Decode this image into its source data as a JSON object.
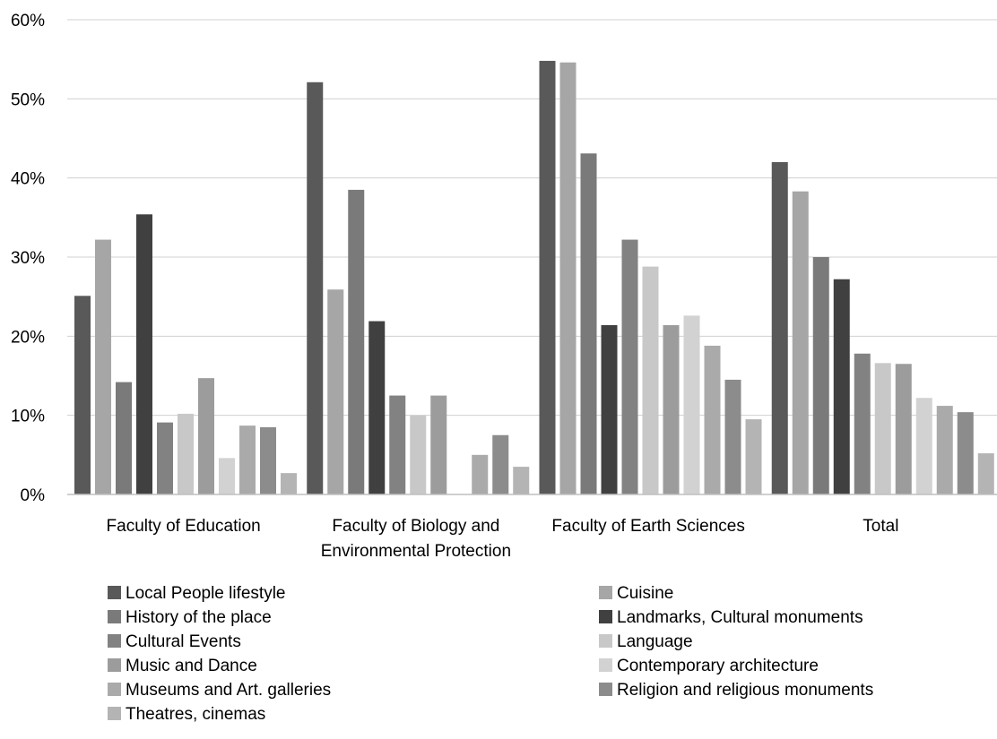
{
  "chart_data": {
    "type": "bar",
    "title": "",
    "xlabel": "",
    "ylabel": "",
    "ylim": [
      0,
      0.6
    ],
    "y_ticks": [
      0,
      0.1,
      0.2,
      0.3,
      0.4,
      0.5,
      0.6
    ],
    "y_tick_labels": [
      "0%",
      "10%",
      "20%",
      "30%",
      "40%",
      "50%",
      "60%"
    ],
    "grid": true,
    "legend_position": "bottom",
    "categories": [
      [
        "Faculty of Education"
      ],
      [
        "Faculty of Biology and",
        "Environmental Protection"
      ],
      [
        "Faculty of Earth Sciences"
      ],
      [
        "Total"
      ]
    ],
    "series": [
      {
        "name": "Local People lifestyle",
        "color": "#595959",
        "values": [
          0.251,
          0.521,
          0.548,
          0.42
        ]
      },
      {
        "name": "Cuisine",
        "color": "#a6a6a6",
        "values": [
          0.322,
          0.259,
          0.546,
          0.383
        ]
      },
      {
        "name": "History of the place",
        "color": "#7a7a7a",
        "values": [
          0.142,
          0.385,
          0.431,
          0.3
        ]
      },
      {
        "name": "Landmarks, Cultural monuments",
        "color": "#404040",
        "values": [
          0.354,
          0.219,
          0.214,
          0.272
        ]
      },
      {
        "name": "Cultural Events",
        "color": "#828282",
        "values": [
          0.091,
          0.125,
          0.322,
          0.178
        ]
      },
      {
        "name": "Language",
        "color": "#c8c8c8",
        "values": [
          0.102,
          0.1,
          0.288,
          0.166
        ]
      },
      {
        "name": "Music and Dance",
        "color": "#9c9c9c",
        "values": [
          0.147,
          0.125,
          0.214,
          0.165
        ]
      },
      {
        "name": "Contemporary architecture",
        "color": "#d2d2d2",
        "values": [
          0.046,
          0,
          0.226,
          0.122
        ]
      },
      {
        "name": "Museums and Art. galleries",
        "color": "#aaaaaa",
        "values": [
          0.087,
          0.05,
          0.188,
          0.112
        ]
      },
      {
        "name": "Religion and religious monuments",
        "color": "#8c8c8c",
        "values": [
          0.085,
          0.075,
          0.145,
          0.104
        ]
      },
      {
        "name": "Theatres, cinemas",
        "color": "#b4b4b4",
        "values": [
          0.027,
          0.035,
          0.095,
          0.052
        ]
      }
    ]
  }
}
